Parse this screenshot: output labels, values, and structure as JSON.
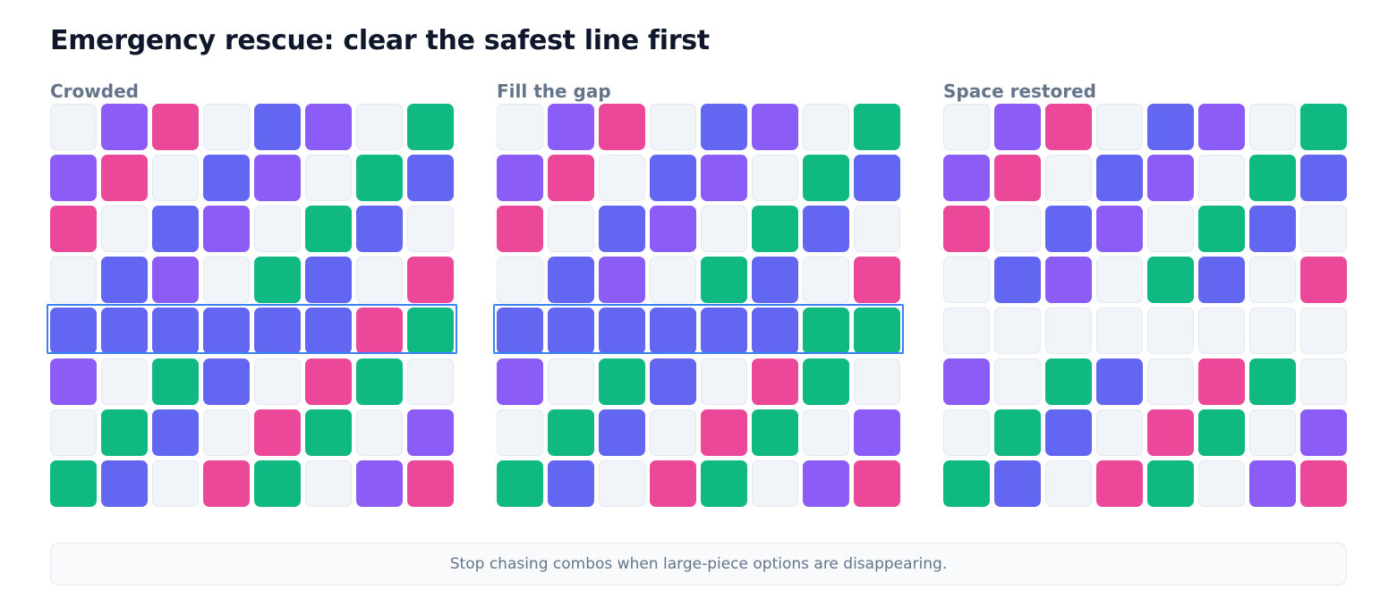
{
  "title": "Emergency rescue: clear the safest line first",
  "colors": {
    "E": "#f1f5f9",
    "P": "#8b5cf6",
    "K": "#ec4899",
    "B": "#6366f1",
    "G": "#10b981"
  },
  "highlight_color": "#3b82f6",
  "panels": [
    {
      "label": "Crowded",
      "highlight_row": 4,
      "rows": [
        "EPKEBPEG",
        "PKEBPEGB",
        "KEBPEGBE",
        "EBPEGBEK",
        "BBBBBBKG",
        "PEGBEKGE",
        "EGBEKGEP",
        "GBEKGEPK"
      ]
    },
    {
      "label": "Fill the gap",
      "highlight_row": 4,
      "rows": [
        "EPKEBPEG",
        "PKEBPEGB",
        "KEBPEGBE",
        "EBPEGBEK",
        "BBBBBBGG",
        "PEGBEKGE",
        "EGBEKGEP",
        "GBEKGEPK"
      ]
    },
    {
      "label": "Space restored",
      "rows": [
        "EPKEBPEG",
        "PKEBPEGB",
        "KEBPEGBE",
        "EBPEGBEK",
        "EEEEEEEE",
        "PEGBEKGE",
        "EGBEKGEP",
        "GBEKGEPK"
      ]
    }
  ],
  "footer": "Stop chasing combos when large-piece options are disappearing."
}
